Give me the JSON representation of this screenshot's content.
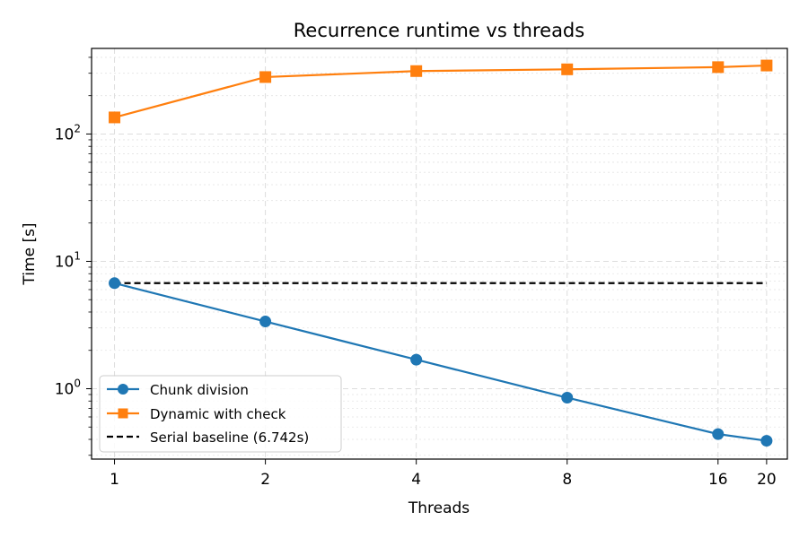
{
  "chart_data": {
    "type": "line",
    "title": "Recurrence runtime vs threads",
    "xlabel": "Threads",
    "ylabel": "Time [s]",
    "x_scale": "log2",
    "y_scale": "log10",
    "x_ticks": [
      1,
      2,
      4,
      8,
      16,
      20
    ],
    "x_tick_labels": [
      "1",
      "2",
      "4",
      "8",
      "16",
      "20"
    ],
    "y_major_ticks": [
      1,
      10,
      100
    ],
    "y_tick_labels": [
      {
        "base": "10",
        "exp": "0"
      },
      {
        "base": "10",
        "exp": "1"
      },
      {
        "base": "10",
        "exp": "2"
      }
    ],
    "xlim": [
      0.9,
      22.0
    ],
    "ylim": [
      0.28,
      470
    ],
    "grid": true,
    "legend_position": "lower-left",
    "x": [
      1,
      2,
      4,
      8,
      16,
      20
    ],
    "series": [
      {
        "name": "Chunk division",
        "values": [
          6.74,
          3.37,
          1.69,
          0.85,
          0.44,
          0.39
        ],
        "color": "#1f77b4",
        "marker": "circle",
        "line_style": "solid"
      },
      {
        "name": "Dynamic with check",
        "values": [
          135,
          280,
          312,
          322,
          335,
          345
        ],
        "color": "#ff7f0e",
        "marker": "square",
        "line_style": "solid"
      }
    ],
    "reference_lines": [
      {
        "name": "Serial baseline (6.742s)",
        "value": 6.742,
        "color": "#000000",
        "line_style": "dashed"
      }
    ]
  }
}
